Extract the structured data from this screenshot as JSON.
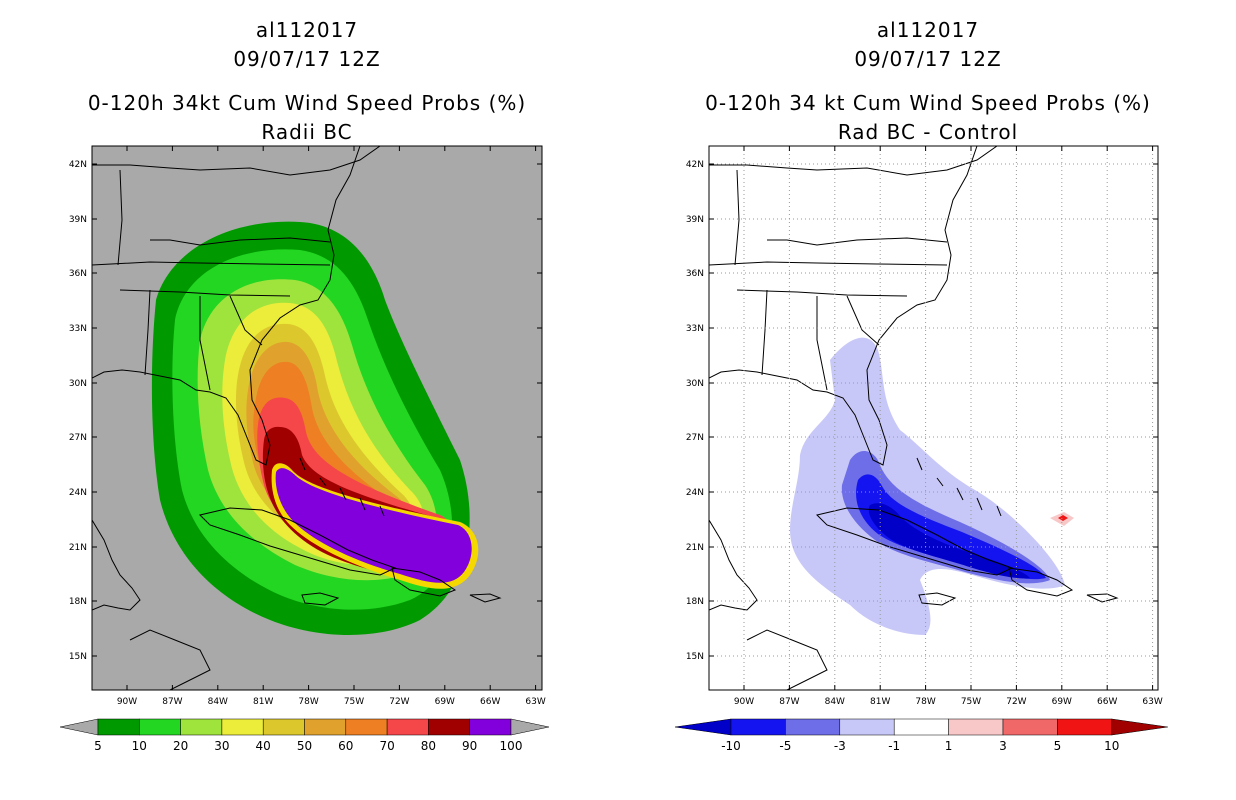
{
  "figure": {
    "left": {
      "storm_id": "al112017",
      "datetime": "09/07/17 12Z",
      "title": "0-120h 34kt Cum Wind Speed Probs (%)",
      "subtitle": "Radii BC",
      "colorbar": {
        "labels": [
          "5",
          "10",
          "20",
          "30",
          "40",
          "50",
          "60",
          "70",
          "80",
          "90",
          "100"
        ],
        "colors": [
          "#009a00",
          "#22d622",
          "#9ee43c",
          "#ecec3a",
          "#dcc82c",
          "#e0a22c",
          "#ee7f22",
          "#f5464a",
          "#a00000",
          "#8200dc"
        ]
      }
    },
    "right": {
      "storm_id": "al112017",
      "datetime": "09/07/17 12Z",
      "title": "0-120h 34 kt Cum Wind Speed Probs (%)",
      "subtitle": "Rad BC - Control",
      "colorbar": {
        "labels": [
          "-10",
          "-5",
          "-3",
          "-1",
          "1",
          "3",
          "5",
          "10"
        ],
        "colors": [
          "#0000c8",
          "#1414f0",
          "#6e6ee8",
          "#c8c8f8",
          "#ffffff",
          "#f8c8c8",
          "#f06868",
          "#f01414",
          "#a00000"
        ]
      }
    },
    "map": {
      "lat_labels": [
        "42N",
        "39N",
        "36N",
        "33N",
        "30N",
        "27N",
        "24N",
        "21N",
        "18N",
        "15N"
      ],
      "lon_labels": [
        "90W",
        "87W",
        "84W",
        "81W",
        "78W",
        "75W",
        "72W",
        "69W",
        "66W",
        "63W"
      ],
      "land_mask_color": "#a9a9a9"
    }
  }
}
